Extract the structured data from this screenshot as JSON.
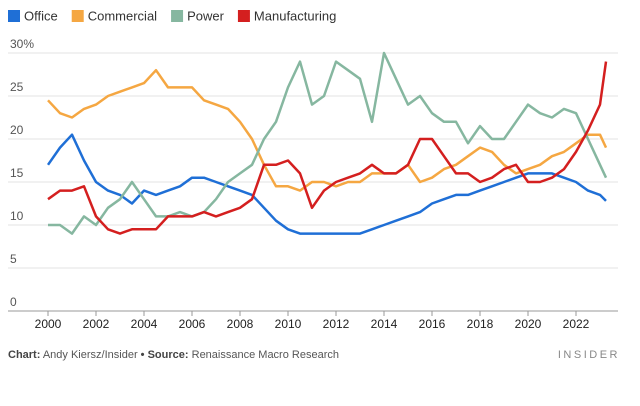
{
  "chart_data": {
    "type": "line",
    "x": [
      2000,
      2000.5,
      2001,
      2001.5,
      2002,
      2002.5,
      2003,
      2003.5,
      2004,
      2004.5,
      2005,
      2005.5,
      2006,
      2006.5,
      2007,
      2007.5,
      2008,
      2008.5,
      2009,
      2009.5,
      2010,
      2010.5,
      2011,
      2011.5,
      2012,
      2012.5,
      2013,
      2013.5,
      2014,
      2014.5,
      2015,
      2015.5,
      2016,
      2016.5,
      2017,
      2017.5,
      2018,
      2018.5,
      2019,
      2019.5,
      2020,
      2020.5,
      2021,
      2021.5,
      2022,
      2022.5,
      2023,
      2023.25
    ],
    "series": [
      {
        "name": "Office",
        "color": "#1f6fd6",
        "values": [
          17,
          19,
          20.5,
          17.5,
          15,
          14,
          13.5,
          12.5,
          14,
          13.5,
          14,
          14.5,
          15.5,
          15.5,
          15,
          14.5,
          14,
          13.5,
          12,
          10.5,
          9.5,
          9,
          9,
          9,
          9,
          9,
          9,
          9.5,
          10,
          10.5,
          11,
          11.5,
          12.5,
          13,
          13.5,
          13.5,
          14,
          14.5,
          15,
          15.5,
          16,
          16,
          16,
          15.5,
          15,
          14,
          13.5,
          12.8
        ]
      },
      {
        "name": "Commercial",
        "color": "#f5a742",
        "values": [
          24.5,
          23,
          22.5,
          23.5,
          24,
          25,
          25.5,
          26,
          26.5,
          28,
          26,
          26,
          26,
          24.5,
          24,
          23.5,
          22,
          20,
          17,
          14.5,
          14.5,
          14,
          15,
          15,
          14.5,
          15,
          15,
          16,
          16,
          16,
          17,
          15,
          15.5,
          16.5,
          17,
          18,
          19,
          18.5,
          17,
          16,
          16.5,
          17,
          18,
          18.5,
          19.5,
          20.5,
          20.5,
          19
        ]
      },
      {
        "name": "Power",
        "color": "#86b7a0",
        "values": [
          10,
          10,
          9,
          11,
          10,
          12,
          13,
          15,
          13,
          11,
          11,
          11.5,
          11,
          11.5,
          13,
          15,
          16,
          17,
          20,
          22,
          26,
          29,
          24,
          25,
          29,
          28,
          27,
          22,
          30,
          27,
          24,
          25,
          23,
          22,
          22,
          19.5,
          21.5,
          20,
          20,
          22,
          24,
          23,
          22.5,
          23.5,
          23,
          20,
          17,
          15.5
        ]
      },
      {
        "name": "Manufacturing",
        "color": "#d41f1f",
        "values": [
          13,
          14,
          14,
          14.5,
          11,
          9.5,
          9,
          9.5,
          9.5,
          9.5,
          11,
          11,
          11,
          11.5,
          11,
          11.5,
          12,
          13,
          17,
          17,
          17.5,
          16,
          12,
          14,
          15,
          15.5,
          16,
          17,
          16,
          16,
          17,
          20,
          20,
          18,
          16,
          16,
          15,
          15.5,
          16.5,
          17,
          15,
          15,
          15.5,
          16.5,
          18.5,
          21,
          24,
          29
        ]
      }
    ],
    "xlim": [
      2000,
      2023.75
    ],
    "xticks": [
      2000,
      2002,
      2004,
      2006,
      2008,
      2010,
      2012,
      2014,
      2016,
      2018,
      2020,
      2022
    ],
    "ylim": [
      0,
      30
    ],
    "yticks": [
      0,
      5,
      10,
      15,
      20,
      25,
      {
        "value": 30,
        "label": "30%"
      }
    ],
    "grid": true,
    "footer": {
      "chart_label": "Chart:",
      "chart_author": "Andy Kiersz/Insider",
      "separator": "•",
      "source_label": "Source:",
      "source": "Renaissance Macro Research",
      "brand": "INSIDER"
    }
  }
}
